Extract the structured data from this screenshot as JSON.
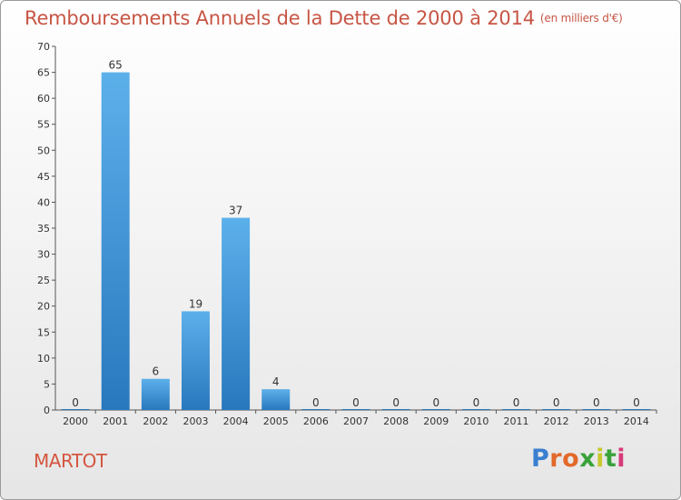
{
  "chart_data": {
    "type": "bar",
    "title": "Remboursements Annuels de la Dette de 2000 à 2014",
    "unit": "(en milliers d'€)",
    "categories": [
      "2000",
      "2001",
      "2002",
      "2003",
      "2004",
      "2005",
      "2006",
      "2007",
      "2008",
      "2009",
      "2010",
      "2011",
      "2012",
      "2013",
      "2014"
    ],
    "values": [
      0,
      65,
      6,
      19,
      37,
      4,
      0,
      0,
      0,
      0,
      0,
      0,
      0,
      0,
      0
    ],
    "ylim": [
      0,
      70
    ],
    "yticks": [
      0,
      5,
      10,
      15,
      20,
      25,
      30,
      35,
      40,
      45,
      50,
      55,
      60,
      65,
      70
    ],
    "xlabel": "",
    "ylabel": "",
    "grid": false,
    "bar_color": "#2f86cc"
  },
  "footer": {
    "place": "MARTOT",
    "logo": "Proxiti"
  }
}
